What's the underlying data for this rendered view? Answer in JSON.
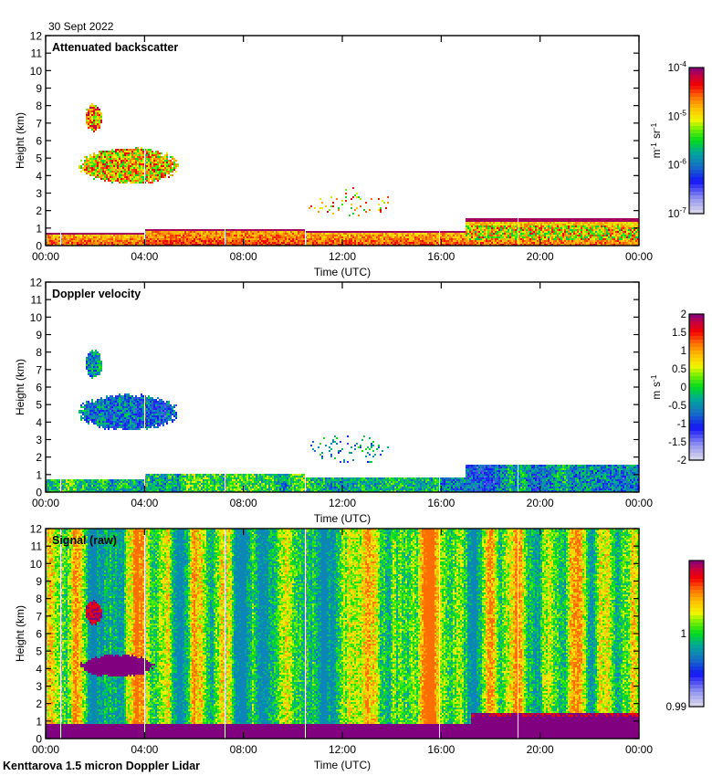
{
  "date_label": "30 Sept 2022",
  "footer_label": "Kenttarova 1.5 micron Doppler Lidar",
  "chart_data": [
    {
      "type": "heatmap",
      "id": "backscatter",
      "title": "Attenuated backscatter",
      "xlabel": "Time (UTC)",
      "ylabel": "Height (km)",
      "xlim_hours": [
        0,
        24
      ],
      "ylim_km": [
        0,
        12
      ],
      "x_ticks": [
        "00:00",
        "04:00",
        "08:00",
        "12:00",
        "16:00",
        "20:00",
        "00:00"
      ],
      "y_ticks": [
        "0",
        "1",
        "2",
        "3",
        "4",
        "5",
        "6",
        "7",
        "8",
        "9",
        "10",
        "11",
        "12"
      ],
      "colorbar": {
        "scale": "log",
        "range": [
          1e-07,
          0.0001
        ],
        "tick_labels": [
          {
            "base": "10",
            "exp": "-4",
            "pos": 1.0
          },
          {
            "base": "10",
            "exp": "-5",
            "pos": 0.6667
          },
          {
            "base": "10",
            "exp": "-6",
            "pos": 0.3333
          },
          {
            "base": "10",
            "exp": "-7",
            "pos": 0.0
          }
        ],
        "unit": "m-1 sr-1"
      },
      "features": [
        {
          "desc": "boundary layer aerosol",
          "t": [
            0,
            4.0
          ],
          "z": [
            0,
            0.75
          ],
          "level": 0.82
        },
        {
          "desc": "boundary layer aerosol",
          "t": [
            4.0,
            10.5
          ],
          "z": [
            0,
            0.95
          ],
          "level": 0.85
        },
        {
          "desc": "boundary layer aerosol",
          "t": [
            10.5,
            17
          ],
          "z": [
            0,
            0.8
          ],
          "level": 0.83
        },
        {
          "desc": "low cloud deck",
          "t": [
            17,
            24
          ],
          "z": [
            0,
            1.55
          ],
          "level": 0.8
        },
        {
          "desc": "mid cloud",
          "t": [
            1.3,
            5.4
          ],
          "z": [
            3.5,
            5.6
          ],
          "level": 0.7
        },
        {
          "desc": "upper cloud",
          "t": [
            1.6,
            2.3
          ],
          "z": [
            6.5,
            8.1
          ],
          "level": 0.75
        },
        {
          "desc": "scattered echoes",
          "t": [
            10.5,
            14
          ],
          "z": [
            1.6,
            3.3
          ],
          "level": 0.7
        }
      ]
    },
    {
      "type": "heatmap",
      "id": "velocity",
      "title": "Doppler velocity",
      "xlabel": "Time (UTC)",
      "ylabel": "Height (km)",
      "xlim_hours": [
        0,
        24
      ],
      "ylim_km": [
        0,
        12
      ],
      "x_ticks": [
        "00:00",
        "04:00",
        "08:00",
        "12:00",
        "16:00",
        "20:00",
        "00:00"
      ],
      "y_ticks": [
        "0",
        "1",
        "2",
        "3",
        "4",
        "5",
        "6",
        "7",
        "8",
        "9",
        "10",
        "11",
        "12"
      ],
      "colorbar": {
        "scale": "linear",
        "range": [
          -2,
          2
        ],
        "tick_labels": [
          {
            "base": "2",
            "pos": 1.0
          },
          {
            "base": "1.5",
            "pos": 0.875
          },
          {
            "base": "1",
            "pos": 0.75
          },
          {
            "base": "0.5",
            "pos": 0.625
          },
          {
            "base": "0",
            "pos": 0.5
          },
          {
            "base": "-0.5",
            "pos": 0.375
          },
          {
            "base": "-1",
            "pos": 0.25
          },
          {
            "base": "-1.5",
            "pos": 0.125
          },
          {
            "base": "-2",
            "pos": 0.0
          }
        ],
        "unit": "m s-1"
      },
      "features": [
        {
          "desc": "boundary layer",
          "t": [
            0,
            4.0
          ],
          "z": [
            0,
            0.75
          ],
          "level": 0.45
        },
        {
          "desc": "boundary layer",
          "t": [
            4.0,
            10.5
          ],
          "z": [
            0,
            1.0
          ],
          "level": 0.47
        },
        {
          "desc": "boundary layer",
          "t": [
            10.5,
            17
          ],
          "z": [
            0,
            0.8
          ],
          "level": 0.45
        },
        {
          "desc": "low cloud region",
          "t": [
            17,
            24
          ],
          "z": [
            0,
            1.55
          ],
          "level": 0.38
        },
        {
          "desc": "mid cloud",
          "t": [
            1.3,
            5.4
          ],
          "z": [
            3.5,
            5.6
          ],
          "level": 0.35
        },
        {
          "desc": "upper cloud",
          "t": [
            1.6,
            2.3
          ],
          "z": [
            6.5,
            8.1
          ],
          "level": 0.4
        },
        {
          "desc": "scattered echoes",
          "t": [
            10.5,
            14
          ],
          "z": [
            1.6,
            3.3
          ],
          "level": 0.4
        }
      ]
    },
    {
      "type": "heatmap",
      "id": "signal",
      "title": "Signal (raw)",
      "xlabel": "Time (UTC)",
      "ylabel": "Height (km)",
      "xlim_hours": [
        0,
        24
      ],
      "ylim_km": [
        0,
        12
      ],
      "x_ticks": [
        "00:00",
        "04:00",
        "08:00",
        "12:00",
        "16:00",
        "20:00",
        "00:00"
      ],
      "y_ticks": [
        "0",
        "1",
        "2",
        "3",
        "4",
        "5",
        "6",
        "7",
        "8",
        "9",
        "10",
        "11",
        "12"
      ],
      "colorbar": {
        "scale": "linear",
        "range": [
          0.99,
          1.01
        ],
        "tick_labels": [
          {
            "base": "1",
            "pos": 0.5
          },
          {
            "base": "0.99",
            "pos": 0.0
          }
        ],
        "unit": ""
      },
      "features": [
        {
          "desc": "saturated near-surface",
          "t": [
            0,
            24
          ],
          "z": [
            0,
            0.8
          ],
          "level": 1.0
        },
        {
          "desc": "low cloud",
          "t": [
            17.2,
            24
          ],
          "z": [
            0,
            1.45
          ],
          "level": 1.0
        },
        {
          "desc": "mid cloud",
          "t": [
            1.4,
            4.4
          ],
          "z": [
            3.5,
            4.8
          ],
          "level": 1.0
        },
        {
          "desc": "upper cloud",
          "t": [
            1.6,
            2.3
          ],
          "z": [
            6.5,
            7.9
          ],
          "level": 0.85
        },
        {
          "desc": "background noise",
          "t": [
            0,
            24
          ],
          "z": [
            0,
            12
          ],
          "level": 0.5
        }
      ]
    }
  ]
}
